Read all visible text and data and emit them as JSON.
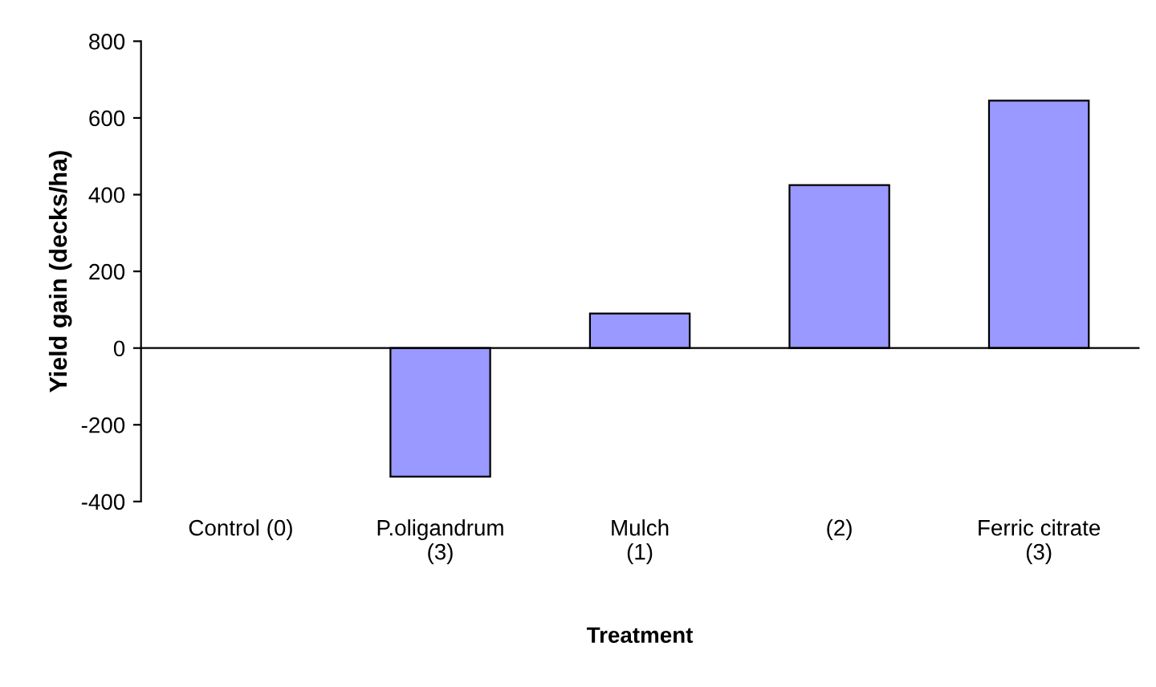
{
  "chart_data": {
    "type": "bar",
    "xlabel": "Treatment",
    "ylabel": "Yield gain (decks/ha)",
    "categories": [
      "Control (0)",
      "P.oligandrum\n(3)",
      "Mulch\n(1)",
      "(2)",
      "Ferric citrate\n(3)"
    ],
    "values": [
      0,
      -335,
      90,
      425,
      645
    ],
    "color": "#9999ff",
    "ylim": [
      -400,
      800
    ],
    "yticks": [
      -400,
      -200,
      0,
      200,
      400,
      600,
      800
    ]
  }
}
